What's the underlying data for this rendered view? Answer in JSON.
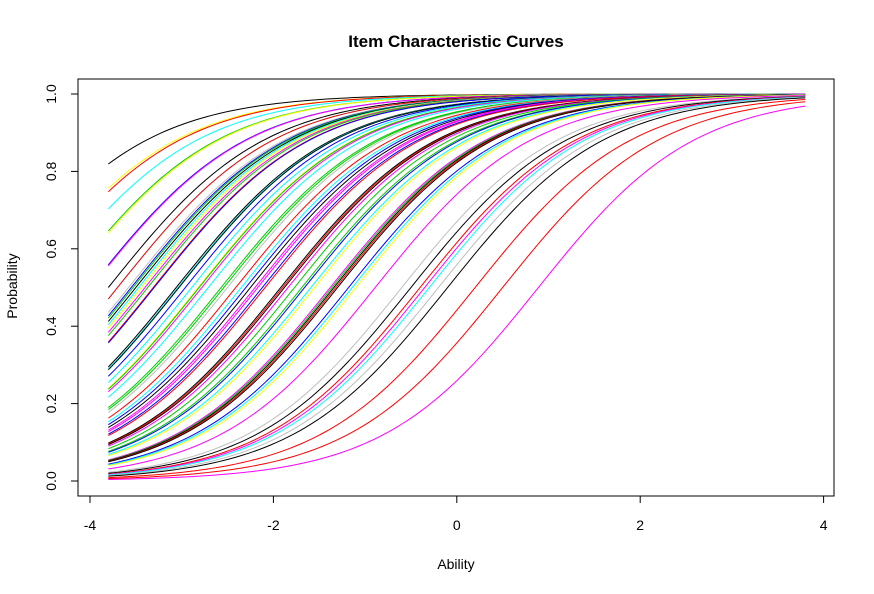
{
  "chart_data": {
    "type": "line",
    "title": "Item Characteristic Curves",
    "xlabel": "Ability",
    "ylabel": "Probability",
    "xlim": [
      -4,
      4
    ],
    "ylim": [
      0,
      1
    ],
    "x_ticks": [
      -4,
      -2,
      0,
      2,
      4
    ],
    "y_ticks": [
      0.0,
      0.2,
      0.4,
      0.6,
      0.8,
      1.0
    ],
    "x_tick_labels": [
      "-4",
      "-2",
      "0",
      "2",
      "4"
    ],
    "y_tick_labels": [
      "0.0",
      "0.2",
      "0.4",
      "0.6",
      "0.8",
      "1.0"
    ],
    "grid": false,
    "legend": "none",
    "model": "logistic: P(theta) = 1 / (1 + exp(-a * (theta - b)))",
    "theta_range": [
      -3.8,
      3.8
    ],
    "palette": [
      "#000000",
      "#ff0000",
      "#00cd00",
      "#0000ff",
      "#00ffff",
      "#ff00ff",
      "#ffff00",
      "#bebebe"
    ],
    "series": [
      {
        "a": 1.18,
        "b": -5.08,
        "color": "#000000"
      },
      {
        "a": 1.18,
        "b": -4.76,
        "color": "#ffff00"
      },
      {
        "a": 1.18,
        "b": -4.72,
        "color": "#ff0000"
      },
      {
        "a": 1.18,
        "b": -4.53,
        "color": "#00ffff"
      },
      {
        "a": 1.18,
        "b": -4.31,
        "color": "#00cd00"
      },
      {
        "a": 1.18,
        "b": -4.29,
        "color": "#ffff00"
      },
      {
        "a": 1.18,
        "b": -4.0,
        "color": "#0000ff"
      },
      {
        "a": 1.18,
        "b": -3.99,
        "color": "#ff00ff"
      },
      {
        "a": 1.18,
        "b": -3.8,
        "color": "#000000"
      },
      {
        "a": 1.18,
        "b": -3.7,
        "color": "#00ffff"
      },
      {
        "a": 1.18,
        "b": -3.7,
        "color": "#ff0000"
      },
      {
        "a": 1.18,
        "b": -3.58,
        "color": "#bebebe"
      },
      {
        "a": 1.18,
        "b": -3.55,
        "color": "#0000ff"
      },
      {
        "a": 1.18,
        "b": -3.53,
        "color": "#00cd00"
      },
      {
        "a": 1.18,
        "b": -3.5,
        "color": "#000000"
      },
      {
        "a": 1.18,
        "b": -3.47,
        "color": "#00ffff"
      },
      {
        "a": 1.18,
        "b": -3.44,
        "color": "#ffff00"
      },
      {
        "a": 1.18,
        "b": -3.4,
        "color": "#ff00ff"
      },
      {
        "a": 1.18,
        "b": -3.37,
        "color": "#00cd00"
      },
      {
        "a": 1.18,
        "b": -3.31,
        "color": "#ff0000"
      },
      {
        "a": 1.18,
        "b": -3.3,
        "color": "#0000ff"
      },
      {
        "a": 1.18,
        "b": -3.06,
        "color": "#000000"
      },
      {
        "a": 1.18,
        "b": -3.04,
        "color": "#00ffff"
      },
      {
        "a": 1.18,
        "b": -3.03,
        "color": "#000000"
      },
      {
        "a": 1.18,
        "b": -2.96,
        "color": "#0000ff"
      },
      {
        "a": 1.18,
        "b": -2.89,
        "color": "#00ffff"
      },
      {
        "a": 1.18,
        "b": -2.82,
        "color": "#ffff00"
      },
      {
        "a": 1.18,
        "b": -2.81,
        "color": "#00cd00"
      },
      {
        "a": 1.18,
        "b": -2.78,
        "color": "#ff00ff"
      },
      {
        "a": 1.18,
        "b": -2.71,
        "color": "#00ffff"
      },
      {
        "a": 1.18,
        "b": -2.57,
        "color": "#00cd00"
      },
      {
        "a": 1.18,
        "b": -2.54,
        "color": "#00cd00"
      },
      {
        "a": 1.18,
        "b": -2.5,
        "color": "#bebebe"
      },
      {
        "a": 1.18,
        "b": -2.41,
        "color": "#ff0000"
      },
      {
        "a": 1.18,
        "b": -2.35,
        "color": "#00ffff"
      },
      {
        "a": 1.18,
        "b": -2.3,
        "color": "#0000ff"
      },
      {
        "a": 1.18,
        "b": -2.25,
        "color": "#000000"
      },
      {
        "a": 1.18,
        "b": -2.2,
        "color": "#ff00ff"
      },
      {
        "a": 1.18,
        "b": -2.17,
        "color": "#ff00ff"
      },
      {
        "a": 1.18,
        "b": -2.12,
        "color": "#0000ff"
      },
      {
        "a": 1.18,
        "b": -2.09,
        "color": "#ff0000"
      },
      {
        "a": 1.18,
        "b": -1.92,
        "color": "#000000"
      },
      {
        "a": 1.18,
        "b": -1.9,
        "color": "#ff0000"
      },
      {
        "a": 1.18,
        "b": -1.88,
        "color": "#000000"
      },
      {
        "a": 1.18,
        "b": -1.84,
        "color": "#ff00ff"
      },
      {
        "a": 1.18,
        "b": -1.77,
        "color": "#00cd00"
      },
      {
        "a": 1.18,
        "b": -1.69,
        "color": "#00cd00"
      },
      {
        "a": 1.18,
        "b": -1.66,
        "color": "#0000ff"
      },
      {
        "a": 1.18,
        "b": -1.59,
        "color": "#00ffff"
      },
      {
        "a": 1.18,
        "b": -1.55,
        "color": "#ffff00"
      },
      {
        "a": 1.18,
        "b": -1.38,
        "color": "#ff00ff"
      },
      {
        "a": 1.18,
        "b": -1.36,
        "color": "#00cd00"
      },
      {
        "a": 1.18,
        "b": -1.34,
        "color": "#000000"
      },
      {
        "a": 1.18,
        "b": -1.32,
        "color": "#ff0000"
      },
      {
        "a": 1.18,
        "b": -1.3,
        "color": "#000000"
      },
      {
        "a": 1.18,
        "b": -1.18,
        "color": "#0000ff"
      },
      {
        "a": 1.18,
        "b": -1.14,
        "color": "#00ffff"
      },
      {
        "a": 1.18,
        "b": -1.1,
        "color": "#ffff00"
      },
      {
        "a": 1.18,
        "b": -0.89,
        "color": "#ff00ff"
      },
      {
        "a": 1.18,
        "b": -0.6,
        "color": "#bebebe"
      },
      {
        "a": 1.18,
        "b": -0.5,
        "color": "#000000"
      },
      {
        "a": 1.18,
        "b": -0.4,
        "color": "#ff0000"
      },
      {
        "a": 1.18,
        "b": -0.35,
        "color": "#ff00ff"
      },
      {
        "a": 1.18,
        "b": -0.3,
        "color": "#00ffff"
      },
      {
        "a": 1.18,
        "b": -0.2,
        "color": "#bebebe"
      },
      {
        "a": 1.18,
        "b": -0.1,
        "color": "#000000"
      },
      {
        "a": 1.18,
        "b": 0.2,
        "color": "#ff0000"
      },
      {
        "a": 1.18,
        "b": 0.5,
        "color": "#ff0000"
      },
      {
        "a": 1.18,
        "b": 0.89,
        "color": "#ff00ff"
      }
    ]
  }
}
